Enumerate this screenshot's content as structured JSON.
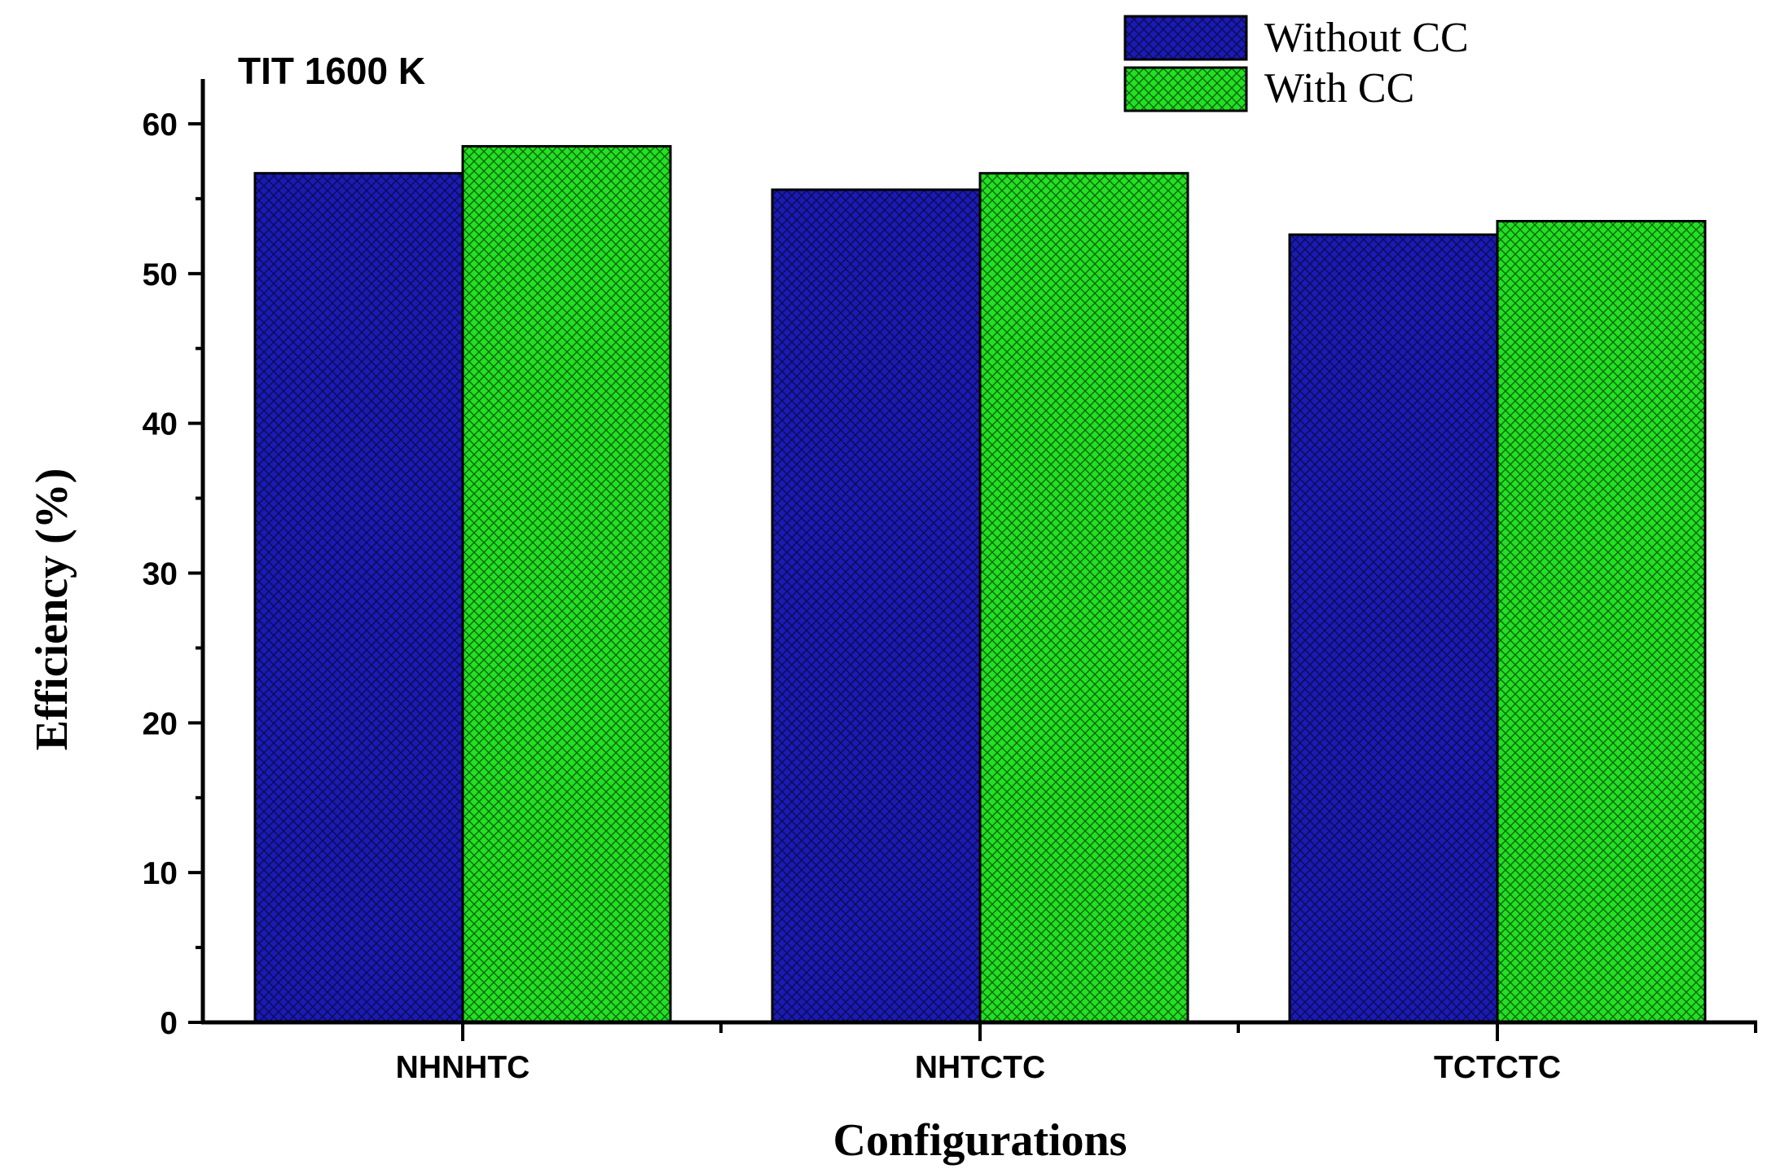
{
  "chart_data": {
    "type": "bar",
    "title": "",
    "annotation": "TIT 1600 K",
    "xlabel": "Configurations",
    "ylabel": "Efficiency (%)",
    "categories": [
      "NHNHTC",
      "NHTCTC",
      "TCTCTC"
    ],
    "series": [
      {
        "name": "Without CC",
        "values": [
          56.7,
          55.6,
          52.6
        ],
        "color": "#1a1ab4"
      },
      {
        "name": "With CC",
        "values": [
          58.5,
          56.7,
          53.5
        ],
        "color": "#22e022"
      }
    ],
    "ylim": [
      0,
      63
    ],
    "yticks": [
      0,
      10,
      20,
      30,
      40,
      50,
      60
    ],
    "ytick_labels": [
      "0",
      "10",
      "20",
      "30",
      "40",
      "50",
      "60"
    ],
    "legend_position": "top-right",
    "grid": false,
    "pattern": "crosshatch"
  }
}
